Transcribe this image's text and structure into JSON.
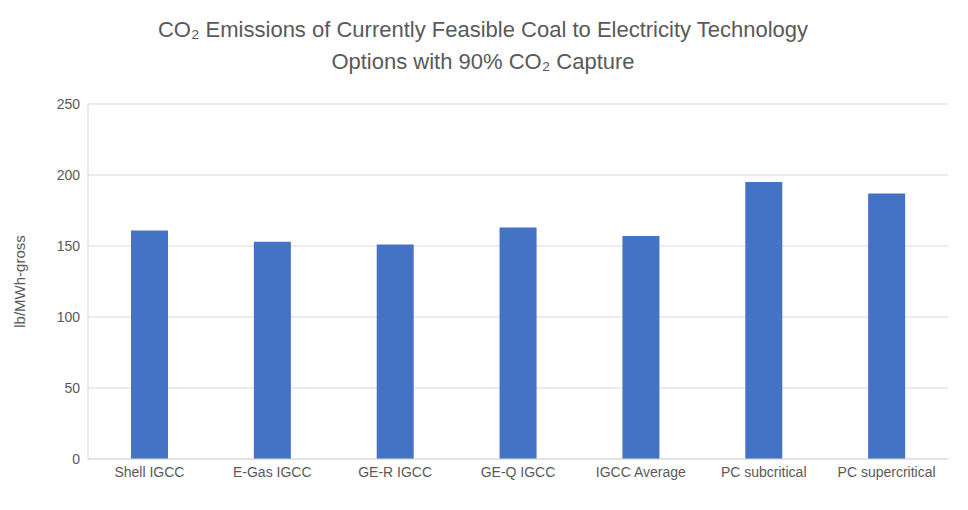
{
  "chart_data": {
    "type": "bar",
    "title": "CO₂ Emissions of Currently Feasible Coal to Electricity Technology Options with 90% CO₂ Capture",
    "y_label": "lb/MWh-gross",
    "categories": [
      "Shell IGCC",
      "E-Gas IGCC",
      "GE-R IGCC",
      "GE-Q IGCC",
      "IGCC Average",
      "PC subcritical",
      "PC supercritical"
    ],
    "values": [
      161,
      153,
      151,
      163,
      157,
      195,
      187
    ],
    "color": "#4472c4",
    "ylim": [
      0,
      250
    ],
    "yticks": [
      0,
      50,
      100,
      150,
      200,
      250
    ],
    "grid": true
  }
}
